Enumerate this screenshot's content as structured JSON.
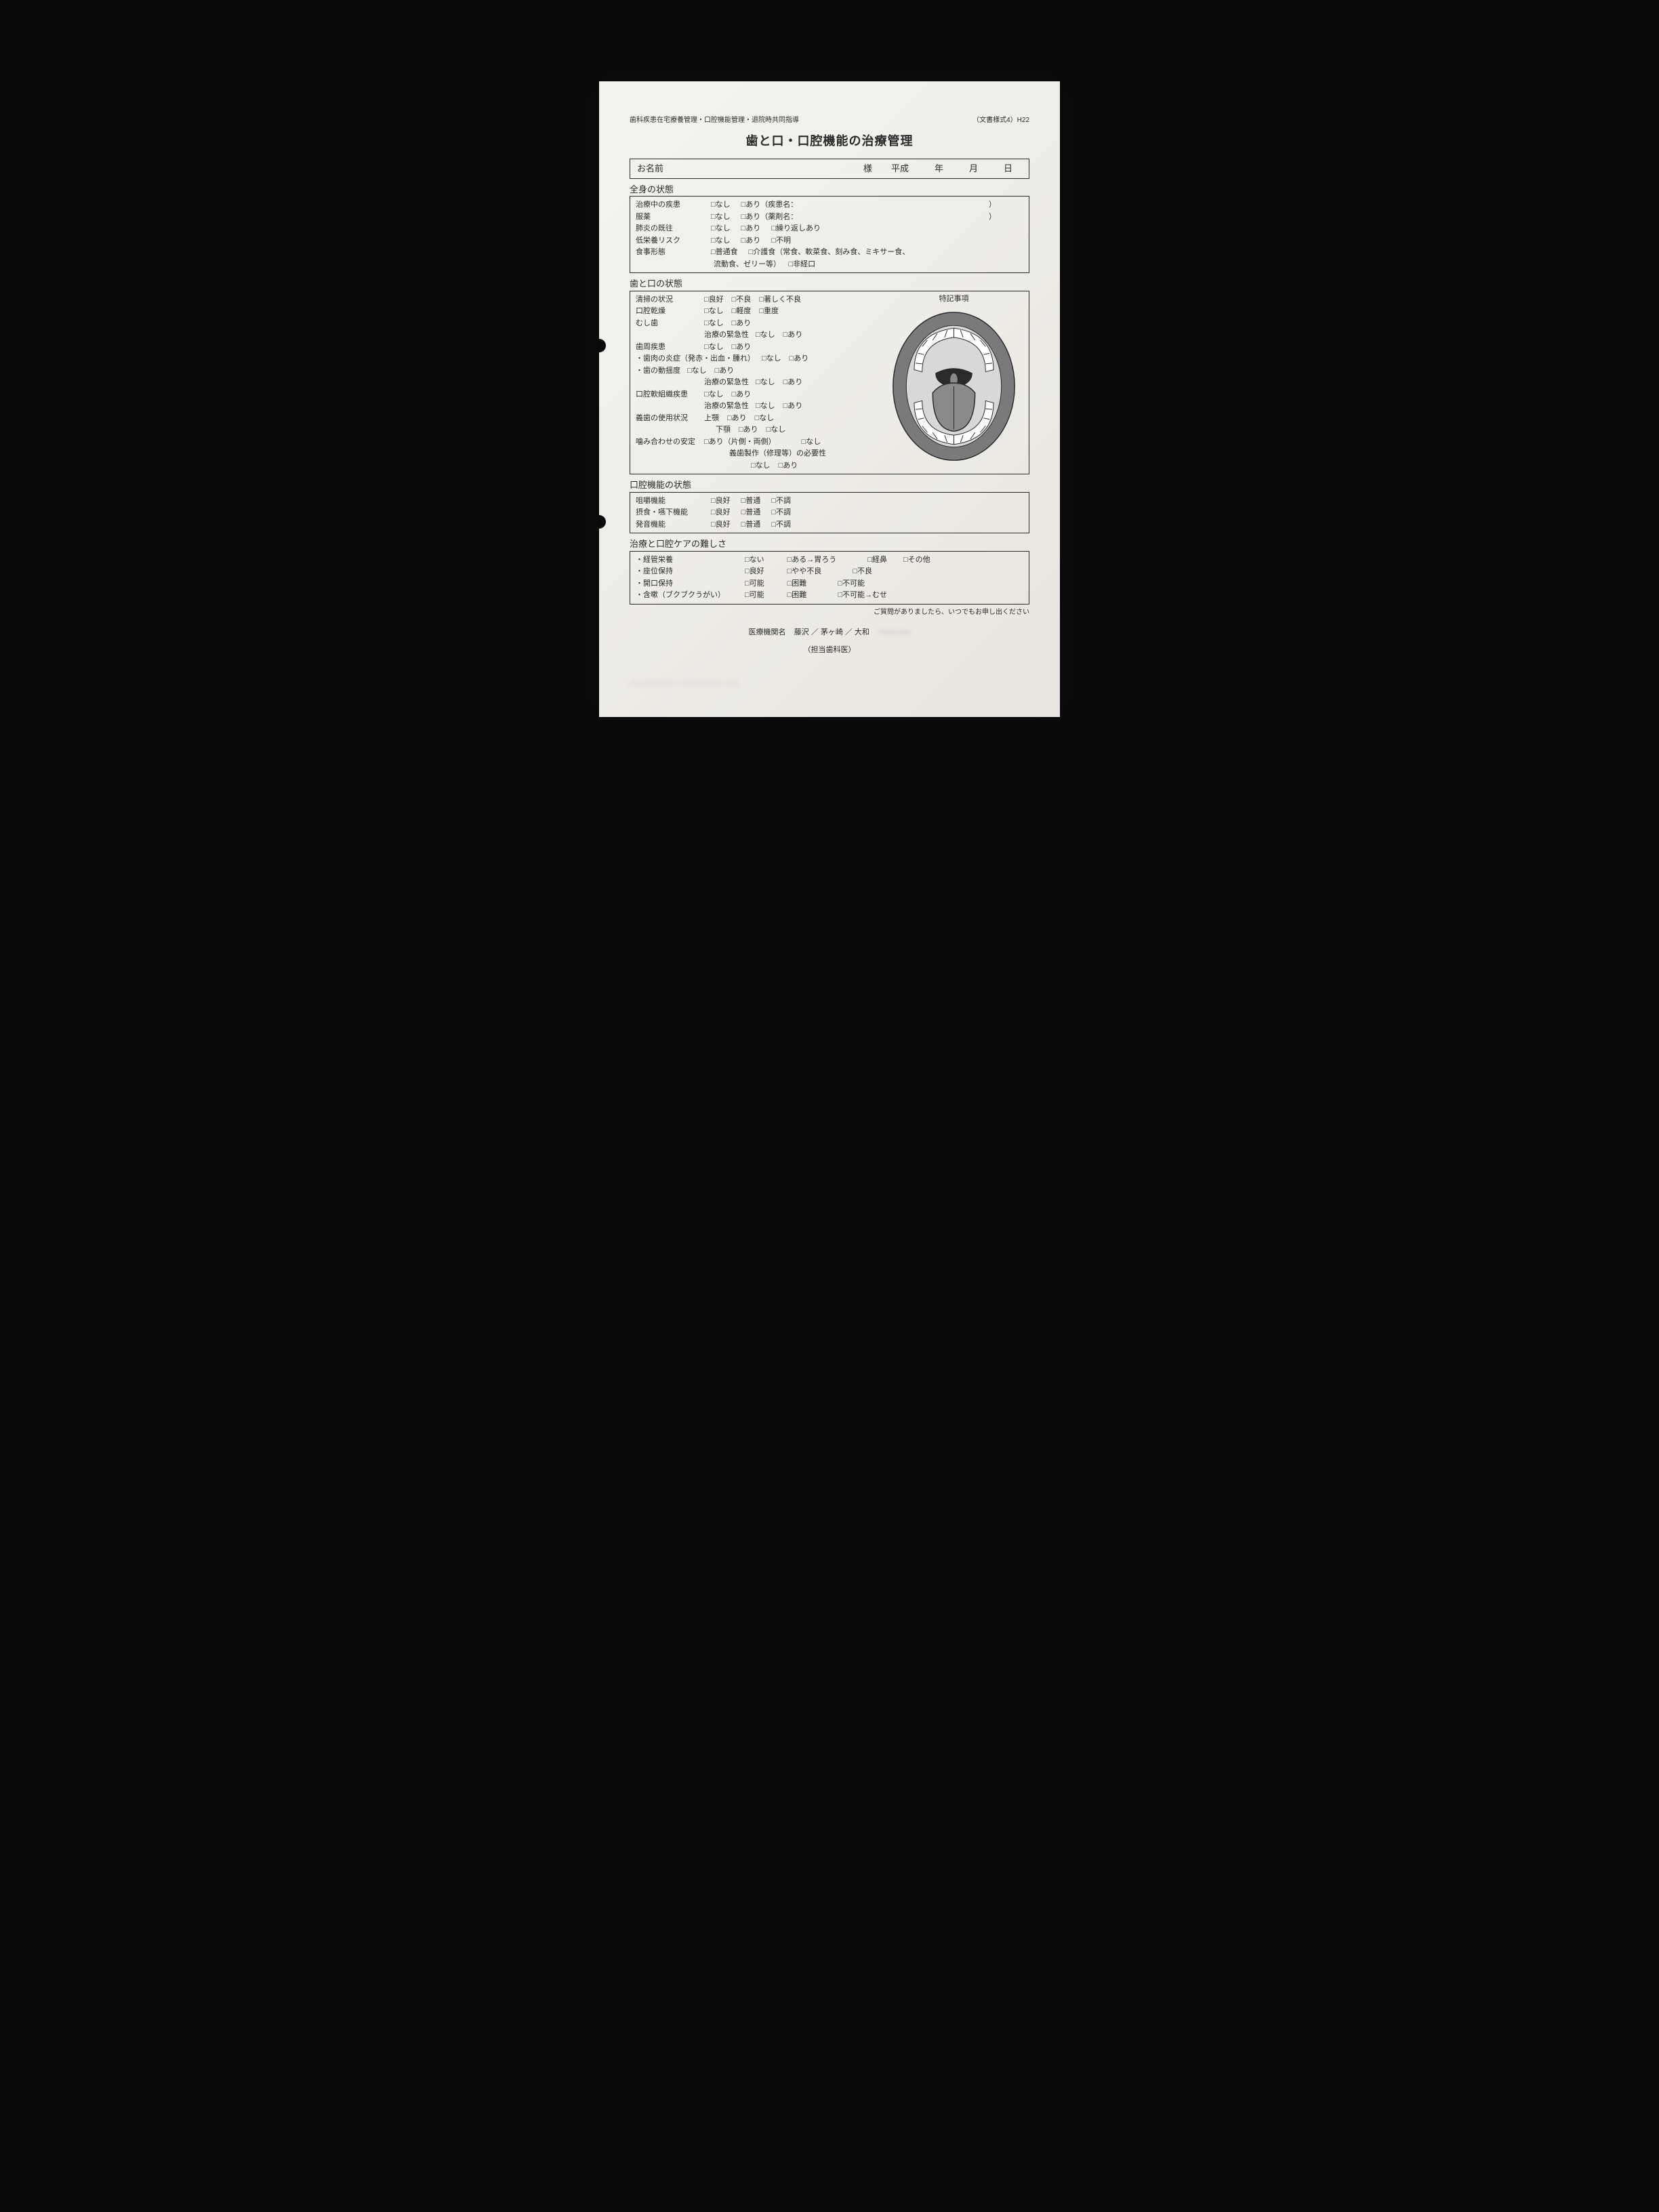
{
  "colors": {
    "page_bg": "#0a0a0a",
    "paper_bg": "#efede7",
    "text": "#2a2a2a",
    "border": "#2a2a2a",
    "mouth_gum": "#7a7a7a",
    "mouth_inner": "#d8d8d8",
    "mouth_tongue": "#8a8a8a",
    "mouth_teeth": "#ffffff",
    "mouth_stroke": "#2a2a2a"
  },
  "typography": {
    "base_fontsize": 11,
    "title_fontsize": 18,
    "section_title_fontsize": 13,
    "header_fontsize": 10
  },
  "header": {
    "left": "歯科疾患在宅療養管理・口腔機能管理・退院時共同指導",
    "right": "（文書様式4）H22"
  },
  "title": "歯と口・口腔機能の治療管理",
  "checkbox_glyph": "□",
  "name_row": {
    "label": "お名前",
    "sama": "様",
    "era": "平成",
    "year": "年",
    "month": "月",
    "day": "日"
  },
  "section1": {
    "title": "全身の状態",
    "rows": [
      {
        "label": "治療中の疾患",
        "opts": [
          "なし",
          "あり（疾患名："
        ],
        "trail": "）"
      },
      {
        "label": "服薬",
        "opts": [
          "なし",
          "あり（薬剤名："
        ],
        "trail": "）"
      },
      {
        "label": "肺炎の既往",
        "opts": [
          "なし",
          "あり",
          "繰り返しあり"
        ]
      },
      {
        "label": "低栄養リスク",
        "opts": [
          "なし",
          "あり",
          "不明"
        ]
      },
      {
        "label": "食事形態",
        "opts": [
          "普通食",
          "介護食（常食、軟菜食、刻み食、ミキサー食、"
        ]
      }
    ],
    "row5_cont": {
      "text1": "流動食、ゼリー等）",
      "opt": "非経口"
    }
  },
  "section2": {
    "title": "歯と口の状態",
    "caption": "特記事項",
    "lines": [
      {
        "label": "清掃の状況",
        "opts": [
          "良好",
          "不良",
          "著しく不良"
        ]
      },
      {
        "label": "口腔乾燥",
        "opts": [
          "なし",
          "軽度",
          "重度"
        ]
      },
      {
        "label": "むし歯",
        "opts": [
          "なし",
          "あり"
        ]
      },
      {
        "indent": true,
        "label": "治療の緊急性",
        "opts": [
          "なし",
          "あり"
        ]
      },
      {
        "label": "歯周疾患",
        "opts": [
          "なし",
          "あり"
        ]
      },
      {
        "sub": true,
        "label": "・歯肉の炎症（発赤・出血・腫れ）",
        "opts": [
          "なし",
          "あり"
        ]
      },
      {
        "sub": true,
        "label": "・歯の動揺度",
        "opts": [
          "なし",
          "あり"
        ]
      },
      {
        "indent": true,
        "label": "治療の緊急性",
        "opts": [
          "なし",
          "あり"
        ]
      },
      {
        "label": "口腔軟組織疾患",
        "opts": [
          "なし",
          "あり"
        ]
      },
      {
        "indent": true,
        "label": "治療の緊急性",
        "opts": [
          "なし",
          "あり"
        ]
      },
      {
        "label": "義歯の使用状況",
        "sublabel": "上顎",
        "opts": [
          "あり",
          "なし"
        ]
      },
      {
        "indent2": true,
        "sublabel": "下顎",
        "opts": [
          "あり",
          "なし"
        ]
      },
      {
        "label": "噛み合わせの安定",
        "opts_nolabel": [
          "あり（片側・両側）"
        ],
        "opt_right": "なし"
      },
      {
        "center_text": "義歯製作（修理等）の必要性"
      },
      {
        "center_opts": [
          "なし",
          "あり"
        ]
      }
    ]
  },
  "section3": {
    "title": "口腔機能の状態",
    "rows": [
      {
        "label": "咀嚼機能",
        "opts": [
          "良好",
          "普通",
          "不調"
        ]
      },
      {
        "label": "摂食・嚥下機能",
        "opts": [
          "良好",
          "普通",
          "不調"
        ]
      },
      {
        "label": "発音機能",
        "opts": [
          "良好",
          "普通",
          "不調"
        ]
      }
    ]
  },
  "section4": {
    "title": "治療と口腔ケアの難しさ",
    "rows": [
      {
        "label": "・経管栄養",
        "opts": [
          "ない",
          "ある→胃ろう",
          "経鼻",
          "その他"
        ]
      },
      {
        "label": "・座位保持",
        "opts": [
          "良好",
          "やや不良",
          "不良"
        ]
      },
      {
        "label": "・開口保持",
        "opts": [
          "可能",
          "困難",
          "不可能"
        ]
      },
      {
        "label": "・含嗽（ブクブクうがい）",
        "opts": [
          "可能",
          "困難",
          "不可能→むせ"
        ]
      }
    ]
  },
  "footer": {
    "note": "ご質問がありましたら、いつでもお申し出ください",
    "inst_label": "医療機関名",
    "inst_value": "藤沢 ／ 茅ヶ崎 ／ 大和",
    "dentist_label": "（担当歯科医）"
  }
}
